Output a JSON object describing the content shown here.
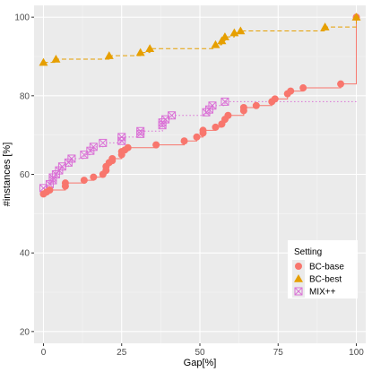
{
  "chart_data": {
    "type": "scatter",
    "title": "",
    "xlabel": "Gap[%]",
    "ylabel": "#instances [%]",
    "xlim": [
      -3,
      103
    ],
    "ylim": [
      17,
      103
    ],
    "xticks": [
      0,
      25,
      50,
      75,
      100
    ],
    "yticks": [
      20,
      40,
      60,
      80,
      100
    ],
    "grid": true,
    "background": "#ebebeb",
    "legend": {
      "title": "Setting",
      "placement": "bottom-right"
    },
    "series": [
      {
        "name": "BC-base",
        "marker": "circle",
        "line": "solid",
        "color": "#f8766d",
        "step_end": 100,
        "x": [
          0,
          1,
          2,
          7,
          7,
          13,
          16,
          19,
          20,
          20,
          21,
          22,
          22,
          25,
          25,
          26,
          27,
          36,
          45,
          49,
          51,
          51,
          55,
          57,
          58,
          59,
          64,
          64,
          68,
          73,
          74,
          78,
          79,
          83,
          95,
          100
        ],
        "y": [
          55.0,
          55.5,
          56.0,
          57.0,
          57.8,
          58.5,
          59.3,
          60.0,
          61.0,
          62.0,
          63.0,
          63.5,
          64.0,
          65.0,
          65.8,
          66.2,
          66.8,
          67.5,
          68.5,
          69.5,
          70.5,
          71.2,
          72.0,
          72.8,
          74.0,
          75.0,
          76.2,
          77.0,
          77.5,
          78.5,
          79.2,
          80.5,
          81.2,
          82.0,
          83.0,
          100.0
        ]
      },
      {
        "name": "BC-best",
        "marker": "triangle",
        "line": "dashed",
        "color": "#e69f00",
        "step_end": 100,
        "x": [
          0,
          4,
          21,
          31,
          34,
          55,
          57,
          58,
          61,
          63,
          90,
          100
        ],
        "y": [
          88.5,
          89.3,
          90.2,
          91.0,
          92.0,
          93.0,
          94.0,
          95.0,
          96.0,
          96.5,
          97.5,
          100.0
        ]
      },
      {
        "name": "MIX++",
        "marker": "square-x",
        "line": "dotted",
        "color": "#da70d6",
        "step_end": 100,
        "x": [
          0,
          2,
          3,
          3,
          4,
          5,
          6,
          8,
          9,
          13,
          15,
          16,
          19,
          25,
          25,
          31,
          31,
          38,
          38,
          39,
          41,
          52,
          53,
          54,
          58
        ],
        "y": [
          56.5,
          57.5,
          58.5,
          59.2,
          60.0,
          61.0,
          62.0,
          63.0,
          64.0,
          65.0,
          66.0,
          67.0,
          68.0,
          68.5,
          69.5,
          70.3,
          71.0,
          72.5,
          73.2,
          74.0,
          75.0,
          75.8,
          76.5,
          77.5,
          78.5
        ]
      }
    ]
  }
}
